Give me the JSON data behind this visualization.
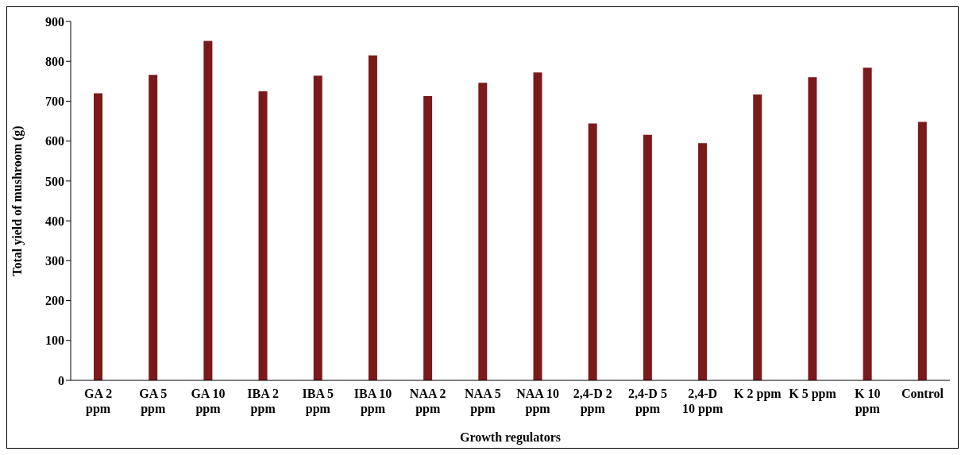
{
  "chart_data": {
    "type": "bar",
    "xlabel": "Growth regulators",
    "ylabel": "Total yield  of mushroom (g)",
    "categories": [
      "GA 2 ppm",
      "GA 5 ppm",
      "GA 10 ppm",
      "IBA 2 ppm",
      "IBA 5 ppm",
      "IBA 10 ppm",
      "NAA 2 ppm",
      "NAA 5 ppm",
      "NAA 10 ppm",
      "2,4-D 2 ppm",
      "2,4-D 5 ppm",
      "2,4-D 10 ppm",
      "K 2 ppm",
      "K 5 ppm",
      "K 10 ppm",
      "Control"
    ],
    "values": [
      720,
      766,
      851,
      725,
      764,
      815,
      713,
      746,
      772,
      644,
      616,
      595,
      717,
      760,
      784,
      648
    ],
    "color": "#7b1a1a",
    "ylim": [
      0,
      900
    ],
    "yticks": [
      0,
      100,
      200,
      300,
      400,
      500,
      600,
      700,
      800,
      900
    ],
    "grid": false,
    "legend": false
  }
}
